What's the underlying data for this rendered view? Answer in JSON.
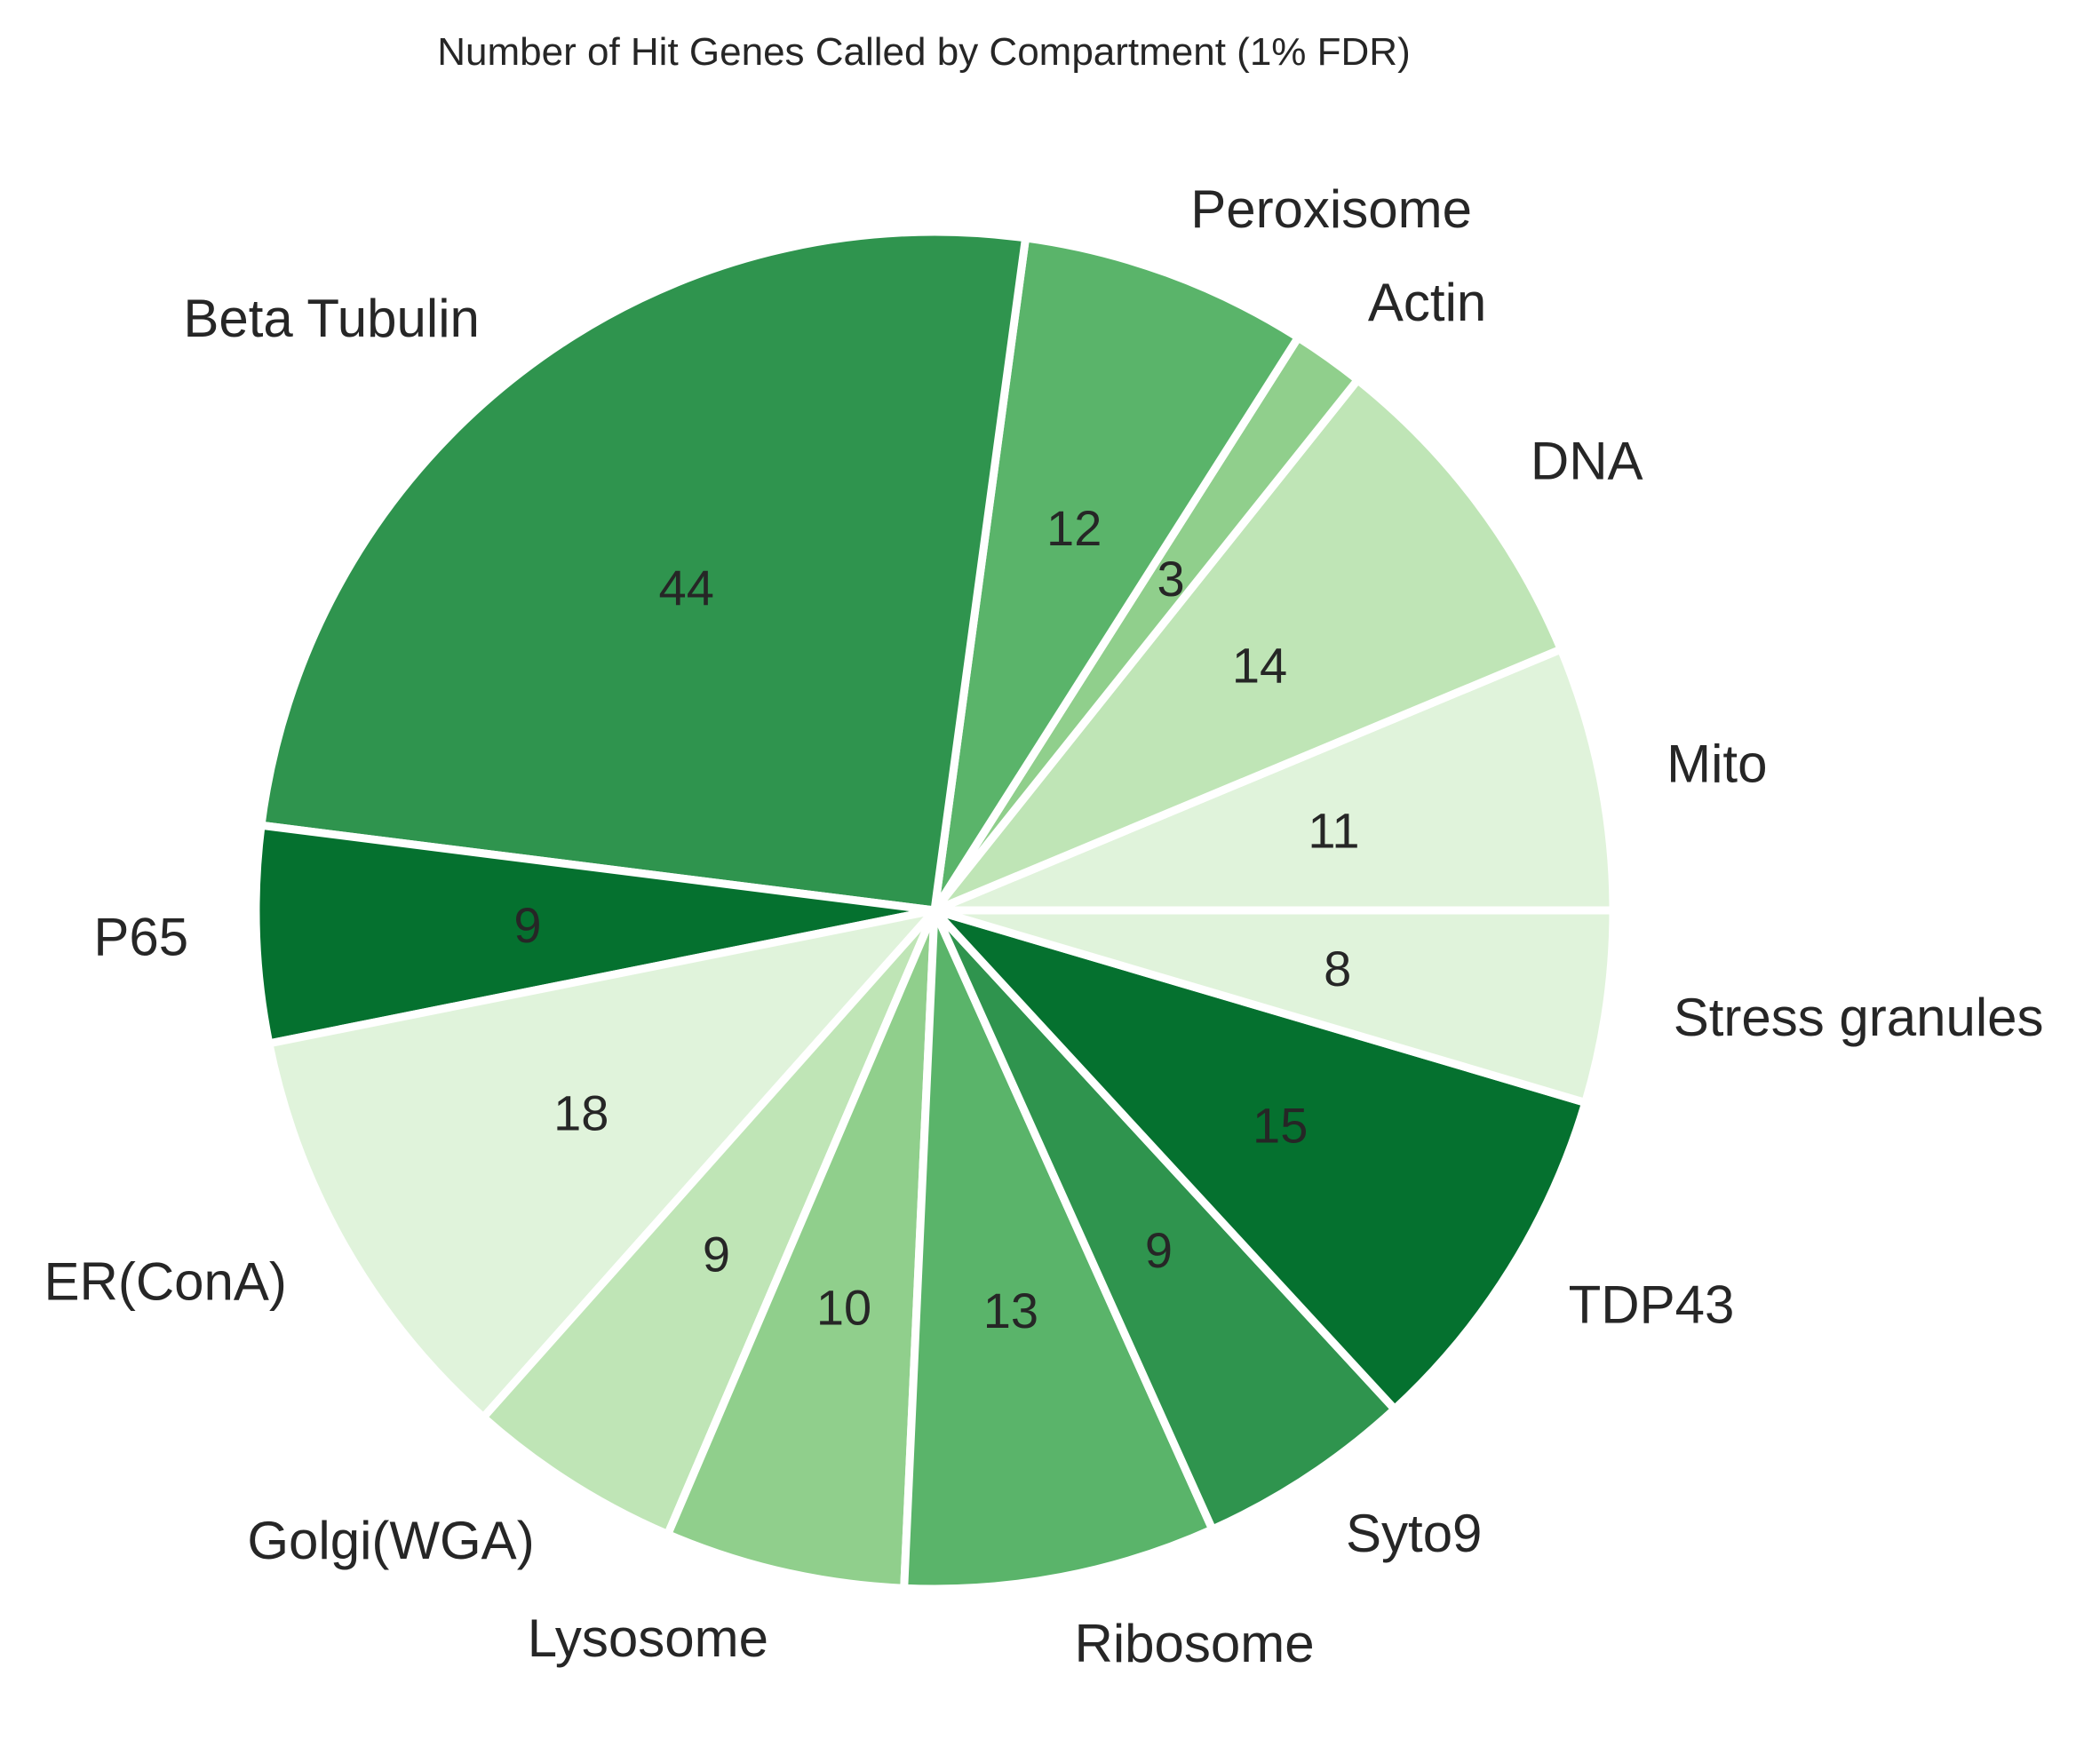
{
  "chart_data": {
    "type": "pie",
    "title": "Number of Hit Genes Called by Compartment (1% FDR)",
    "start_angle_deg": 0,
    "direction": "counterclockwise",
    "slices": [
      {
        "label": "Mito",
        "value": 11,
        "color": "#e0f3db"
      },
      {
        "label": "DNA",
        "value": 14,
        "color": "#bfe5b6"
      },
      {
        "label": "Actin",
        "value": 3,
        "color": "#90cf8c"
      },
      {
        "label": "Peroxisome",
        "value": 12,
        "color": "#5ab46a"
      },
      {
        "label": "Beta Tubulin",
        "value": 44,
        "color": "#2f944e"
      },
      {
        "label": "P65",
        "value": 9,
        "color": "#05712f"
      },
      {
        "label": "ER(ConA)",
        "value": 18,
        "color": "#e0f3db"
      },
      {
        "label": "Golgi(WGA)",
        "value": 9,
        "color": "#bfe5b6"
      },
      {
        "label": "Lysosome",
        "value": 10,
        "color": "#90cf8c"
      },
      {
        "label": "Ribosome",
        "value": 13,
        "color": "#5ab46a"
      },
      {
        "label": "Syto9",
        "value": 9,
        "color": "#2f944e"
      },
      {
        "label": "TDP43",
        "value": 15,
        "color": "#05712f"
      },
      {
        "label": "Stress granules",
        "value": 8,
        "color": "#e0f3db"
      }
    ]
  }
}
